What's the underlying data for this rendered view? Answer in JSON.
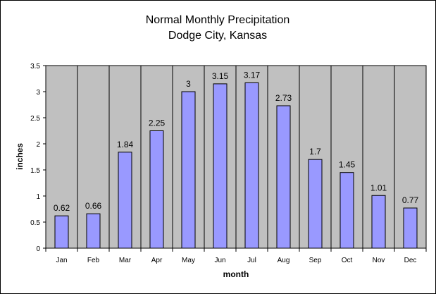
{
  "chart_data": {
    "type": "bar",
    "title": [
      "Normal Monthly Precipitation",
      "Dodge City, Kansas"
    ],
    "xlabel": "month",
    "ylabel": "inches",
    "categories": [
      "Jan",
      "Feb",
      "Mar",
      "Apr",
      "May",
      "Jun",
      "Jul",
      "Aug",
      "Sep",
      "Oct",
      "Nov",
      "Dec"
    ],
    "values": [
      0.62,
      0.66,
      1.84,
      2.25,
      3,
      3.15,
      3.17,
      2.73,
      1.7,
      1.45,
      1.01,
      0.77
    ],
    "data_labels": [
      "0.62",
      "0.66",
      "1.84",
      "2.25",
      "3",
      "3.15",
      "3.17",
      "2.73",
      "1.7",
      "1.45",
      "1.01",
      "0.77"
    ],
    "ylim": [
      0,
      3.5
    ],
    "yticks": [
      "0",
      "0.5",
      "1",
      "1.5",
      "2",
      "2.5",
      "3",
      "3.5"
    ],
    "ytick_values": [
      0,
      0.5,
      1,
      1.5,
      2,
      2.5,
      3,
      3.5
    ],
    "grid": "vertical category separators",
    "legend": "none",
    "colors": {
      "plot_background": "#c0c0c0",
      "bar_fill": "#9999ff",
      "bar_stroke": "#000000",
      "axis": "#000000"
    }
  }
}
